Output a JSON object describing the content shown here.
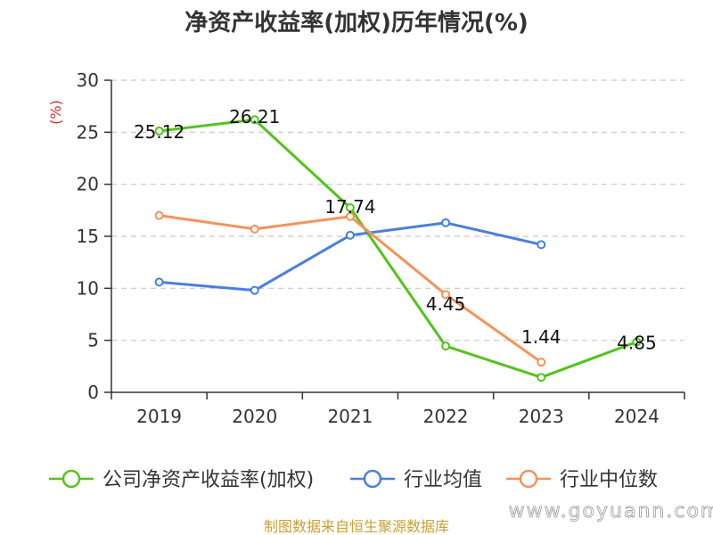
{
  "chart_data": {
    "type": "line",
    "title": "净资产收益率(加权)历年情况(%)",
    "ylabel": "(%)",
    "xlabel": "",
    "categories": [
      "2019",
      "2020",
      "2021",
      "2022",
      "2023",
      "2024"
    ],
    "ylim": [
      0,
      30
    ],
    "yticks": [
      0,
      5,
      10,
      15,
      20,
      25,
      30
    ],
    "grid": true,
    "legend": "bottom",
    "series": [
      {
        "name": "公司净资产收益率(加权)",
        "color": "#52c41a",
        "values": [
          25.12,
          26.21,
          17.74,
          4.45,
          1.44,
          4.85
        ],
        "labels": [
          "25.12",
          "26.21",
          "17.74",
          "4.45",
          "1.44",
          "4.85"
        ]
      },
      {
        "name": "行业均值",
        "color": "#4a7fdc",
        "values": [
          10.6,
          9.8,
          15.1,
          16.3,
          14.2,
          null
        ]
      },
      {
        "name": "行业中位数",
        "color": "#f5925a",
        "values": [
          17.0,
          15.7,
          16.9,
          9.4,
          2.9,
          null
        ]
      }
    ]
  },
  "source_text": "制图数据来自恒生聚源数据库",
  "watermark": "www.goyuann.com"
}
